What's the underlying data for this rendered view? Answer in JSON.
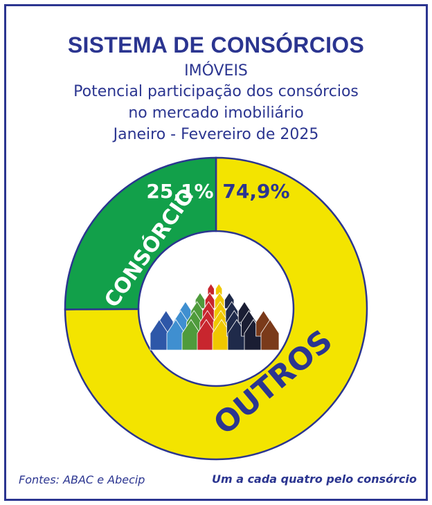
{
  "header": {
    "title": "SISTEMA DE CONSÓRCIOS",
    "subtitle": "IMÓVEIS",
    "description_line1": "Potencial participação dos consórcios",
    "description_line2": "no mercado imobiliário",
    "period": "Janeiro - Fevereiro de 2025"
  },
  "footer": {
    "source": "Fontes: ABAC e Abecip",
    "tagline": "Um a cada quatro pelo consórcio"
  },
  "colors": {
    "brand_blue": "#2b3590",
    "consorcio_green": "#12a04a",
    "outros_yellow": "#f3e400"
  },
  "chart_data": {
    "type": "pie",
    "donut": true,
    "series": [
      {
        "name": "CONSÓRCIO",
        "value": 25.1,
        "value_label": "25,1%",
        "color": "#12a04a"
      },
      {
        "name": "OUTROS",
        "value": 74.9,
        "value_label": "74,9%",
        "color": "#f3e400"
      }
    ],
    "center_image": "houses-icon"
  }
}
